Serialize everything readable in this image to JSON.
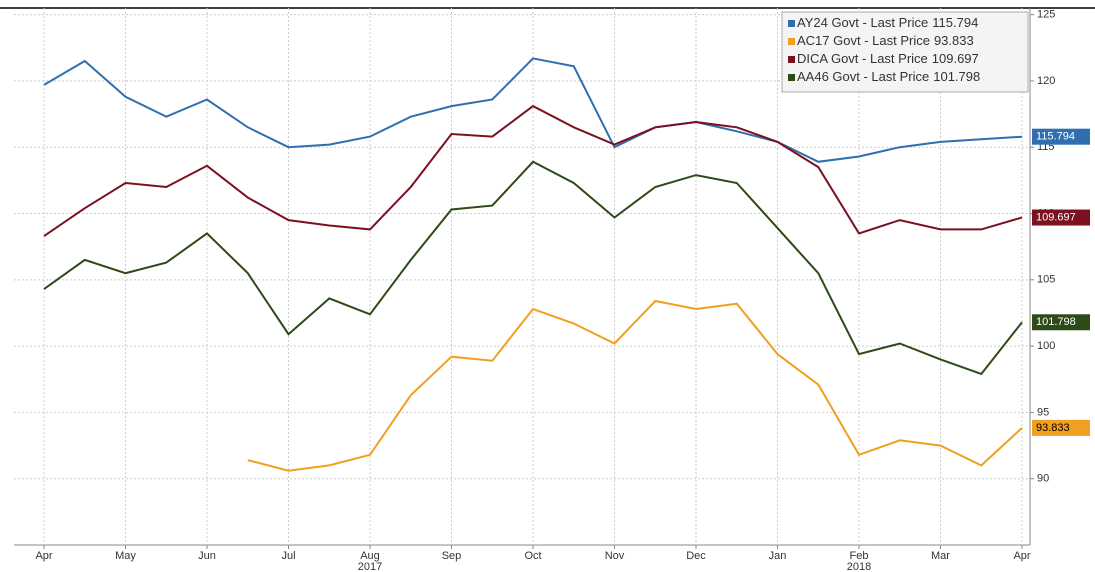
{
  "chart_data": {
    "type": "line",
    "categories": [
      "Apr",
      null,
      "May",
      null,
      "Jun",
      null,
      "Jul",
      null,
      "Aug",
      null,
      "Sep",
      null,
      "Oct",
      null,
      "Nov",
      null,
      "Dec",
      null,
      "Jan",
      null,
      "Feb",
      null,
      "Mar",
      null,
      "Apr"
    ],
    "year_labels": [
      "2017",
      "2018"
    ],
    "series": [
      {
        "name": "AY24 Govt - Last Price",
        "color": "#2f6fb0",
        "values": [
          119.7,
          121.5,
          118.8,
          117.3,
          118.6,
          116.5,
          115.0,
          115.2,
          115.8,
          117.3,
          118.1,
          118.6,
          121.7,
          121.1,
          115.0,
          116.5,
          116.9,
          116.2,
          115.4,
          113.9,
          114.3,
          115.0,
          115.4,
          115.6,
          115.794
        ]
      },
      {
        "name": "AC17 Govt - Last Price",
        "color": "#f0a020",
        "values": [
          null,
          null,
          null,
          null,
          null,
          91.4,
          90.6,
          91.0,
          91.8,
          96.3,
          99.2,
          98.9,
          102.8,
          101.7,
          100.2,
          103.4,
          102.8,
          103.2,
          99.4,
          97.1,
          91.8,
          92.9,
          92.5,
          91.0,
          93.833
        ]
      },
      {
        "name": "DICA  Govt - Last Price",
        "color": "#7a1020",
        "values": [
          108.3,
          110.4,
          112.3,
          112.0,
          113.6,
          111.2,
          109.5,
          109.1,
          108.8,
          112.0,
          116.0,
          115.8,
          118.1,
          116.5,
          115.2,
          116.5,
          116.9,
          116.5,
          115.4,
          113.5,
          108.5,
          109.5,
          108.8,
          108.8,
          109.697
        ]
      },
      {
        "name": "AA46 Govt - Last Price",
        "color": "#2d4a18",
        "values": [
          104.3,
          106.5,
          105.5,
          106.3,
          108.5,
          105.5,
          100.9,
          103.6,
          102.4,
          106.5,
          110.3,
          110.6,
          113.9,
          112.3,
          109.7,
          112.0,
          112.9,
          112.3,
          108.9,
          105.5,
          99.4,
          100.2,
          99.0,
          97.9,
          101.798
        ]
      }
    ],
    "ylim": [
      85,
      125.5
    ],
    "yticks": [
      90,
      95,
      100,
      105,
      110,
      115,
      120,
      125
    ],
    "grid": true,
    "legend": "top-right"
  }
}
